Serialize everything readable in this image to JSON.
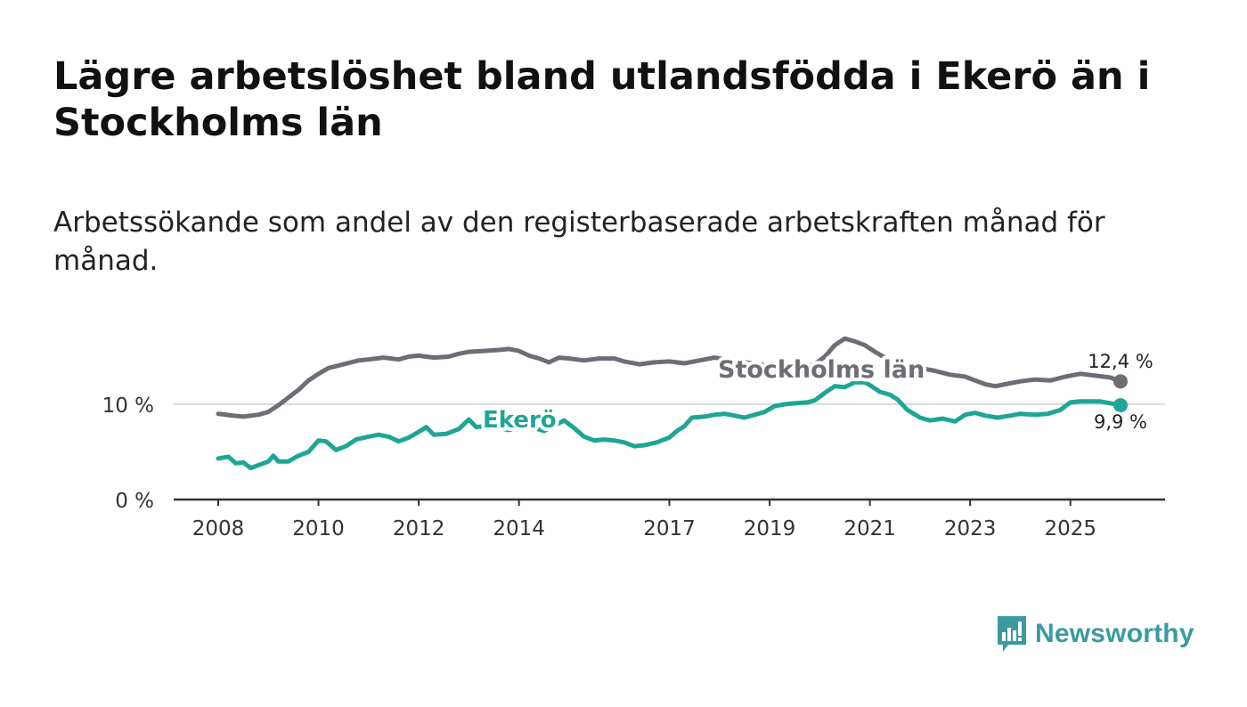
{
  "title": "Lägre arbetslöshet bland utlandsfödda i Ekerö än i Stockholms län",
  "subtitle": "Arbetssökande som andel av den registerbaserade arbetskraften månad för månad.",
  "brand": {
    "name": "Newsworthy",
    "color": "#3a9aa0",
    "icon": "newsworthy-logo-icon"
  },
  "chart_data": {
    "type": "line",
    "xlabel": "",
    "ylabel": "",
    "ylim": [
      0,
      20
    ],
    "xlim": [
      2008.0,
      2026.0
    ],
    "yticks": [
      {
        "value": 0,
        "label": "0 %"
      },
      {
        "value": 10,
        "label": "10 %"
      }
    ],
    "xticks": [
      {
        "value": 2008,
        "label": "2008"
      },
      {
        "value": 2010,
        "label": "2010"
      },
      {
        "value": 2012,
        "label": "2012"
      },
      {
        "value": 2014,
        "label": "2014"
      },
      {
        "value": 2017,
        "label": "2017"
      },
      {
        "value": 2019,
        "label": "2019"
      },
      {
        "value": 2021,
        "label": "2021"
      },
      {
        "value": 2023,
        "label": "2023"
      },
      {
        "value": 2025,
        "label": "2025"
      }
    ],
    "gridlines": [
      10
    ],
    "series": [
      {
        "name": "Stockholms län",
        "color": "#6f6c75",
        "label": "Stockholms län",
        "end_label": "12,4 %",
        "points": [
          [
            2008.0,
            9.0
          ],
          [
            2008.3,
            8.8
          ],
          [
            2008.5,
            8.7
          ],
          [
            2008.8,
            8.9
          ],
          [
            2009.0,
            9.2
          ],
          [
            2009.2,
            9.9
          ],
          [
            2009.4,
            10.7
          ],
          [
            2009.6,
            11.5
          ],
          [
            2009.8,
            12.5
          ],
          [
            2010.0,
            13.2
          ],
          [
            2010.2,
            13.8
          ],
          [
            2010.5,
            14.2
          ],
          [
            2010.8,
            14.6
          ],
          [
            2011.0,
            14.7
          ],
          [
            2011.3,
            14.9
          ],
          [
            2011.6,
            14.7
          ],
          [
            2011.8,
            15.0
          ],
          [
            2012.0,
            15.1
          ],
          [
            2012.3,
            14.9
          ],
          [
            2012.6,
            15.0
          ],
          [
            2012.8,
            15.3
          ],
          [
            2013.0,
            15.5
          ],
          [
            2013.3,
            15.6
          ],
          [
            2013.6,
            15.7
          ],
          [
            2013.8,
            15.8
          ],
          [
            2014.0,
            15.6
          ],
          [
            2014.2,
            15.1
          ],
          [
            2014.4,
            14.8
          ],
          [
            2014.6,
            14.4
          ],
          [
            2014.8,
            14.9
          ],
          [
            2015.0,
            14.8
          ],
          [
            2015.3,
            14.6
          ],
          [
            2015.6,
            14.8
          ],
          [
            2015.9,
            14.8
          ],
          [
            2016.1,
            14.5
          ],
          [
            2016.4,
            14.2
          ],
          [
            2016.7,
            14.4
          ],
          [
            2017.0,
            14.5
          ],
          [
            2017.3,
            14.3
          ],
          [
            2017.6,
            14.6
          ],
          [
            2017.9,
            14.9
          ],
          [
            2018.2,
            14.6
          ],
          [
            2018.5,
            14.4
          ],
          [
            2018.8,
            14.2
          ],
          [
            2019.0,
            14.0
          ],
          [
            2019.3,
            13.6
          ],
          [
            2019.6,
            13.7
          ],
          [
            2019.9,
            14.2
          ],
          [
            2020.1,
            15.0
          ],
          [
            2020.3,
            16.2
          ],
          [
            2020.5,
            16.9
          ],
          [
            2020.7,
            16.6
          ],
          [
            2020.9,
            16.2
          ],
          [
            2021.1,
            15.5
          ],
          [
            2021.3,
            14.9
          ],
          [
            2021.5,
            14.5
          ],
          [
            2021.8,
            14.1
          ],
          [
            2022.0,
            13.8
          ],
          [
            2022.3,
            13.5
          ],
          [
            2022.6,
            13.1
          ],
          [
            2022.9,
            12.9
          ],
          [
            2023.1,
            12.5
          ],
          [
            2023.3,
            12.1
          ],
          [
            2023.5,
            11.9
          ],
          [
            2023.7,
            12.1
          ],
          [
            2024.0,
            12.4
          ],
          [
            2024.3,
            12.6
          ],
          [
            2024.6,
            12.5
          ],
          [
            2024.9,
            12.9
          ],
          [
            2025.2,
            13.2
          ],
          [
            2025.5,
            13.0
          ],
          [
            2025.8,
            12.8
          ],
          [
            2026.0,
            12.4
          ]
        ]
      },
      {
        "name": "Ekerö",
        "color": "#1fa596",
        "label": "Ekerö",
        "end_label": "9,9 %",
        "points": [
          [
            2008.0,
            4.3
          ],
          [
            2008.2,
            4.5
          ],
          [
            2008.35,
            3.8
          ],
          [
            2008.5,
            3.9
          ],
          [
            2008.65,
            3.3
          ],
          [
            2008.85,
            3.7
          ],
          [
            2009.0,
            4.0
          ],
          [
            2009.1,
            4.6
          ],
          [
            2009.2,
            4.0
          ],
          [
            2009.4,
            4.0
          ],
          [
            2009.6,
            4.6
          ],
          [
            2009.8,
            5.0
          ],
          [
            2010.0,
            6.2
          ],
          [
            2010.15,
            6.1
          ],
          [
            2010.35,
            5.2
          ],
          [
            2010.55,
            5.6
          ],
          [
            2010.75,
            6.3
          ],
          [
            2011.0,
            6.6
          ],
          [
            2011.2,
            6.8
          ],
          [
            2011.4,
            6.6
          ],
          [
            2011.6,
            6.1
          ],
          [
            2011.8,
            6.5
          ],
          [
            2012.0,
            7.1
          ],
          [
            2012.15,
            7.6
          ],
          [
            2012.3,
            6.8
          ],
          [
            2012.55,
            6.9
          ],
          [
            2012.8,
            7.4
          ],
          [
            2013.0,
            8.4
          ],
          [
            2013.15,
            7.6
          ],
          [
            2013.3,
            7.7
          ],
          [
            2013.6,
            7.5
          ],
          [
            2013.8,
            7.3
          ],
          [
            2014.0,
            7.6
          ],
          [
            2014.25,
            7.6
          ],
          [
            2014.5,
            7.2
          ],
          [
            2014.75,
            7.9
          ],
          [
            2014.9,
            8.3
          ],
          [
            2015.1,
            7.5
          ],
          [
            2015.3,
            6.6
          ],
          [
            2015.5,
            6.2
          ],
          [
            2015.7,
            6.3
          ],
          [
            2015.9,
            6.2
          ],
          [
            2016.1,
            6.0
          ],
          [
            2016.3,
            5.6
          ],
          [
            2016.5,
            5.7
          ],
          [
            2016.75,
            6.0
          ],
          [
            2017.0,
            6.5
          ],
          [
            2017.15,
            7.2
          ],
          [
            2017.3,
            7.7
          ],
          [
            2017.45,
            8.6
          ],
          [
            2017.7,
            8.7
          ],
          [
            2017.9,
            8.9
          ],
          [
            2018.1,
            9.0
          ],
          [
            2018.3,
            8.8
          ],
          [
            2018.5,
            8.6
          ],
          [
            2018.7,
            8.9
          ],
          [
            2018.9,
            9.2
          ],
          [
            2019.1,
            9.8
          ],
          [
            2019.3,
            10.0
          ],
          [
            2019.5,
            10.1
          ],
          [
            2019.75,
            10.2
          ],
          [
            2019.9,
            10.4
          ],
          [
            2020.1,
            11.2
          ],
          [
            2020.3,
            11.9
          ],
          [
            2020.5,
            11.8
          ],
          [
            2020.7,
            12.3
          ],
          [
            2020.9,
            12.3
          ],
          [
            2021.0,
            12.0
          ],
          [
            2021.2,
            11.3
          ],
          [
            2021.4,
            11.0
          ],
          [
            2021.55,
            10.5
          ],
          [
            2021.75,
            9.4
          ],
          [
            2022.0,
            8.6
          ],
          [
            2022.2,
            8.3
          ],
          [
            2022.45,
            8.5
          ],
          [
            2022.7,
            8.2
          ],
          [
            2022.9,
            8.9
          ],
          [
            2023.1,
            9.1
          ],
          [
            2023.3,
            8.8
          ],
          [
            2023.55,
            8.6
          ],
          [
            2023.8,
            8.8
          ],
          [
            2024.0,
            9.0
          ],
          [
            2024.3,
            8.9
          ],
          [
            2024.55,
            9.0
          ],
          [
            2024.8,
            9.4
          ],
          [
            2025.0,
            10.2
          ],
          [
            2025.2,
            10.3
          ],
          [
            2025.4,
            10.3
          ],
          [
            2025.6,
            10.3
          ],
          [
            2025.8,
            10.1
          ],
          [
            2026.0,
            9.9
          ]
        ]
      }
    ]
  }
}
